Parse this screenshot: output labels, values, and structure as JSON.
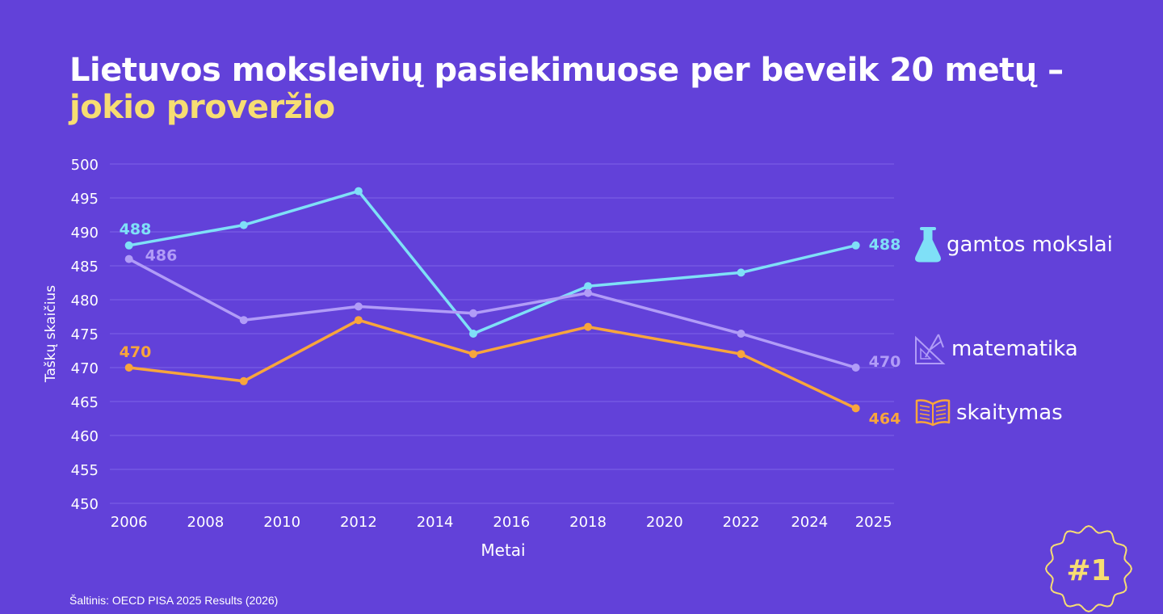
{
  "title": {
    "line1": "Lietuvos moksleivių pasiekimuose per beveik 20 metų –",
    "line2": "jokio proveržio"
  },
  "source": "Šaltinis: OECD PISA 2025 Results (2026)",
  "badge": {
    "text": "#1"
  },
  "colors": {
    "background": "#6241d9",
    "accent_yellow": "#f7dd72",
    "gamtos": "#7fe0f7",
    "matematika": "#b19cf7",
    "skaitymas": "#f8a53c"
  },
  "legend": [
    {
      "label": "gamtos mokslai",
      "icon": "flask-icon"
    },
    {
      "label": "matematika",
      "icon": "ruler-compass-icon"
    },
    {
      "label": "skaitymas",
      "icon": "open-book-icon"
    }
  ],
  "chart_data": {
    "type": "line",
    "xlabel": "Metai",
    "ylabel": "Taškų skaičius",
    "ylim": [
      450,
      500
    ],
    "yticks": [
      450,
      455,
      460,
      465,
      470,
      475,
      480,
      485,
      490,
      495,
      500
    ],
    "xticks": [
      "2006",
      "2008",
      "2010",
      "2012",
      "2014",
      "2016",
      "2018",
      "2020",
      "2022",
      "2024",
      "2025"
    ],
    "grid": true,
    "legend_position": "right",
    "x": [
      2006,
      2009,
      2012,
      2015,
      2018,
      2022,
      2025
    ],
    "series": [
      {
        "name": "gamtos mokslai",
        "color": "#7fe0f7",
        "values": [
          488,
          491,
          496,
          475,
          482,
          484,
          488
        ],
        "labels": {
          "first": "488",
          "last": "488"
        }
      },
      {
        "name": "matematika",
        "color": "#b19cf7",
        "values": [
          486,
          477,
          479,
          478,
          481,
          475,
          470
        ],
        "labels": {
          "first": "486",
          "last": "470"
        }
      },
      {
        "name": "skaitymas",
        "color": "#f8a53c",
        "values": [
          470,
          468,
          477,
          472,
          476,
          472,
          464
        ],
        "labels": {
          "first": "470",
          "last": "464"
        }
      }
    ]
  }
}
